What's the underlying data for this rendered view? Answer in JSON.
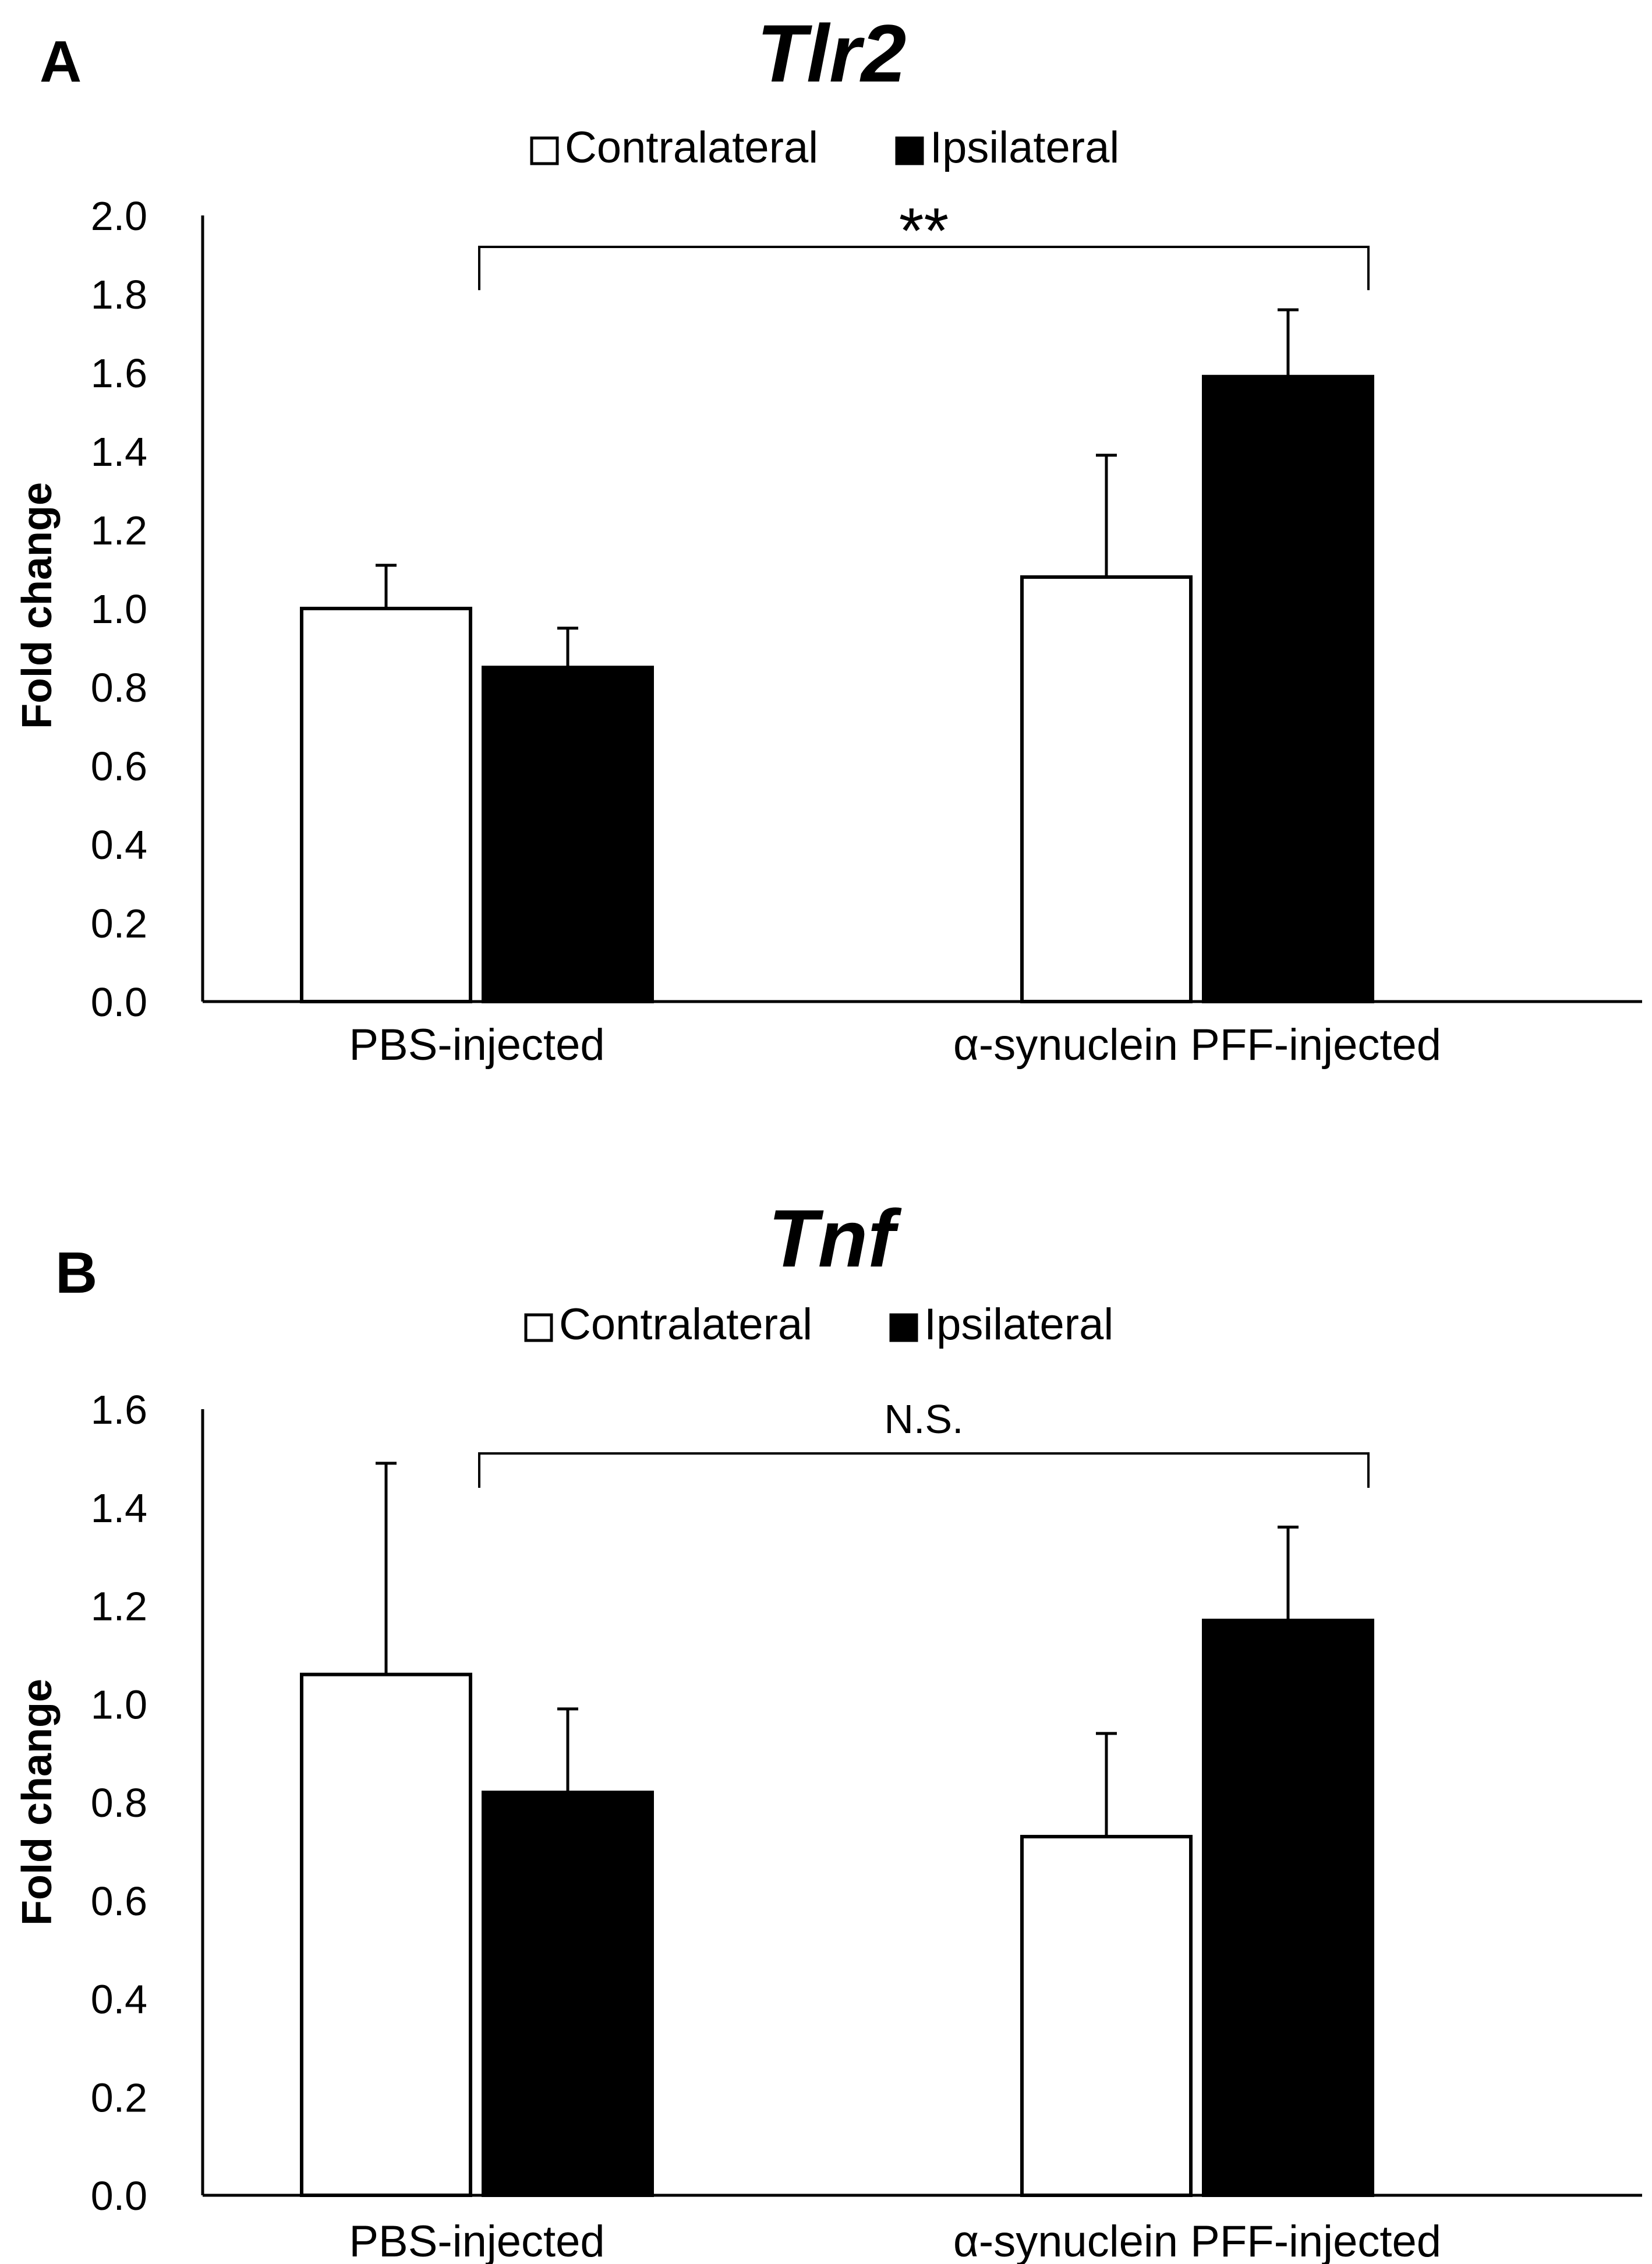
{
  "chart_data": [
    {
      "type": "bar",
      "panel": "A",
      "title": "Tlr2",
      "xlabel": "",
      "ylabel": "Fold change",
      "ylim": [
        0,
        2.0
      ],
      "yticks": [
        "0.0",
        "0.2",
        "0.4",
        "0.6",
        "0.8",
        "1.0",
        "1.2",
        "1.4",
        "1.6",
        "1.8",
        "2.0"
      ],
      "categories": [
        "PBS-injected",
        "α-synuclein PFF-injected"
      ],
      "series": [
        {
          "name": "Contralateral",
          "color": "#ffffff",
          "values": [
            1.0,
            1.08
          ],
          "errors": [
            0.11,
            0.31
          ]
        },
        {
          "name": "Ipsilateral",
          "color": "#000000",
          "values": [
            0.85,
            1.59
          ],
          "errors": [
            0.1,
            0.17
          ]
        }
      ],
      "significance": {
        "label": "**",
        "level": 1.92,
        "drop": 0.11
      },
      "legend_position": "top-center"
    },
    {
      "type": "bar",
      "panel": "B",
      "title": "Tnf",
      "xlabel": "",
      "ylabel": "Fold change",
      "ylim": [
        0,
        1.6
      ],
      "yticks": [
        "0.0",
        "0.2",
        "0.4",
        "0.6",
        "0.8",
        "1.0",
        "1.2",
        "1.4",
        "1.6"
      ],
      "categories": [
        "PBS-injected",
        "α-synuclein PFF-injected"
      ],
      "series": [
        {
          "name": "Contralateral",
          "color": "#ffffff",
          "values": [
            1.06,
            0.73
          ],
          "errors": [
            0.43,
            0.21
          ]
        },
        {
          "name": "Ipsilateral",
          "color": "#000000",
          "values": [
            0.82,
            1.17
          ],
          "errors": [
            0.17,
            0.19
          ]
        }
      ],
      "significance": {
        "label": "N.S.",
        "level": 1.51,
        "drop": 0.07
      },
      "legend_position": "top-center"
    }
  ]
}
